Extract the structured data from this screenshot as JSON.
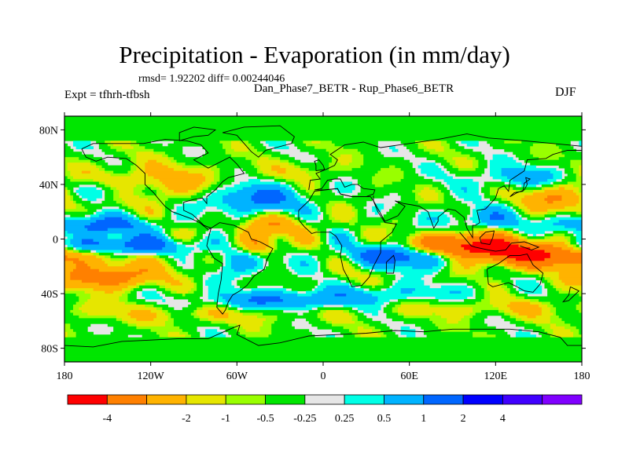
{
  "page": {
    "title": "Precipitation - Evaporation (in mm/day)",
    "stats_line": "rmsd= 1.92202 diff= 0.00244046",
    "subtitle": "Dan_Phase7_BETR - Rup_Phase6_BETR",
    "experiment": "Expt = tfhrh-tfbsh",
    "season": "DJF"
  },
  "chart_data": {
    "type": "heatmap",
    "title": "Precipitation - Evaporation (in mm/day)",
    "xlim": [
      -180,
      180
    ],
    "ylim": [
      -90,
      90
    ],
    "x_ticks": [
      {
        "value": -180,
        "label": "180"
      },
      {
        "value": -120,
        "label": "120W"
      },
      {
        "value": -60,
        "label": "60W"
      },
      {
        "value": 0,
        "label": "0"
      },
      {
        "value": 60,
        "label": "60E"
      },
      {
        "value": 120,
        "label": "120E"
      },
      {
        "value": 180,
        "label": "180"
      }
    ],
    "y_ticks": [
      {
        "value": 80,
        "label": "80N"
      },
      {
        "value": 40,
        "label": "40N"
      },
      {
        "value": 0,
        "label": "0"
      },
      {
        "value": -40,
        "label": "40S"
      },
      {
        "value": -80,
        "label": "80S"
      }
    ],
    "colorbar": {
      "colors": [
        "#ff0000",
        "#ff8000",
        "#ffb300",
        "#e6e600",
        "#99ff00",
        "#00e600",
        "#e6e6e6",
        "#00ffe6",
        "#00b3ff",
        "#0066ff",
        "#0000ff",
        "#4000ff",
        "#8000ff"
      ],
      "levels": [
        -4,
        -2,
        -1,
        -0.5,
        -0.25,
        0.25,
        0.5,
        1,
        2,
        4
      ],
      "labels": [
        "-4",
        "-2",
        "-1",
        "-0.5",
        "-0.25",
        "0.25",
        "0.5",
        "1",
        "2",
        "4"
      ],
      "label_positions": [
        1,
        3,
        4,
        5,
        6,
        7,
        8,
        9,
        10,
        11
      ]
    },
    "field_features": [
      {
        "lon": 150,
        "lat": -10,
        "value": -5.0,
        "sx": 38,
        "sy": 7
      },
      {
        "lon": 95,
        "lat": -5,
        "value": -4.5,
        "sx": 25,
        "sy": 6
      },
      {
        "lon": 60,
        "lat": -12,
        "value": 3.5,
        "sx": 30,
        "sy": 6
      },
      {
        "lon": -150,
        "lat": -5,
        "value": 3.5,
        "sx": 45,
        "sy": 5
      },
      {
        "lon": -160,
        "lat": 10,
        "value": 2.5,
        "sx": 30,
        "sy": 5
      },
      {
        "lon": -150,
        "lat": -28,
        "value": -3.0,
        "sx": 22,
        "sy": 6
      },
      {
        "lon": -120,
        "lat": 40,
        "value": -1.5,
        "sx": 45,
        "sy": 10
      },
      {
        "lon": -155,
        "lat": 35,
        "value": 2.0,
        "sx": 18,
        "sy": 6
      },
      {
        "lon": -50,
        "lat": 30,
        "value": 2.5,
        "sx": 25,
        "sy": 8
      },
      {
        "lon": -35,
        "lat": 10,
        "value": -1.5,
        "sx": 20,
        "sy": 6
      },
      {
        "lon": -45,
        "lat": -5,
        "value": -3.0,
        "sx": 10,
        "sy": 6
      },
      {
        "lon": -55,
        "lat": -15,
        "value": 1.8,
        "sx": 15,
        "sy": 8
      },
      {
        "lon": -30,
        "lat": -45,
        "value": 2.0,
        "sx": 40,
        "sy": 5
      },
      {
        "lon": 20,
        "lat": -20,
        "value": -0.4,
        "sx": 15,
        "sy": 10
      },
      {
        "lon": 110,
        "lat": 15,
        "value": 1.5,
        "sx": 20,
        "sy": 6
      },
      {
        "lon": 165,
        "lat": 30,
        "value": -2.0,
        "sx": 20,
        "sy": 7
      },
      {
        "lon": 140,
        "lat": 45,
        "value": 1.5,
        "sx": 25,
        "sy": 6
      },
      {
        "lon": 50,
        "lat": -40,
        "value": 1.0,
        "sx": 40,
        "sy": 5
      },
      {
        "lon": -90,
        "lat": -55,
        "value": -0.8,
        "sx": 60,
        "sy": 5
      },
      {
        "lon": 120,
        "lat": -50,
        "value": -0.8,
        "sx": 60,
        "sy": 5
      },
      {
        "lon": -10,
        "lat": 50,
        "value": -0.8,
        "sx": 15,
        "sy": 5
      },
      {
        "lon": -100,
        "lat": -10,
        "value": -0.8,
        "sx": 20,
        "sy": 10
      }
    ]
  }
}
